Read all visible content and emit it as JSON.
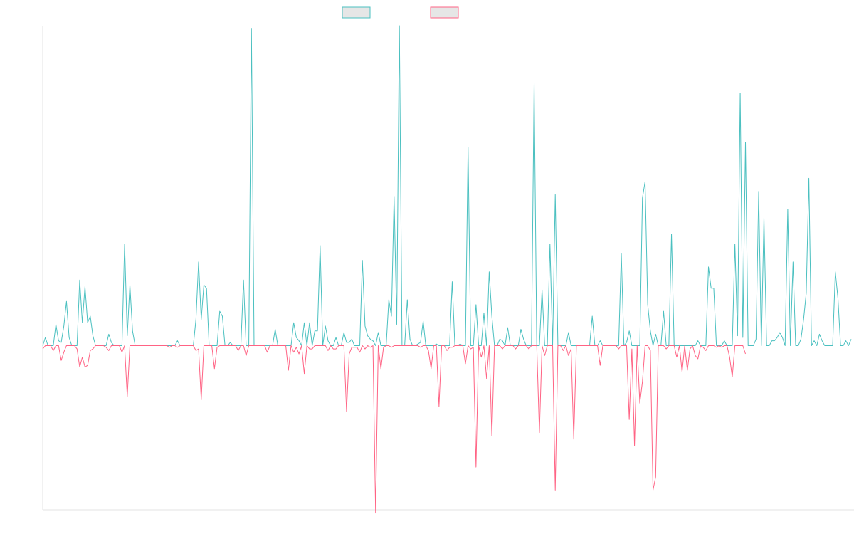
{
  "chart_data": {
    "type": "line",
    "title": "",
    "xlabel": "",
    "ylabel": "",
    "grid": false,
    "legend_placement": "top-center",
    "ylim": [
      -100,
      195
    ],
    "series": [
      {
        "name": "",
        "color": "#4bc0c0",
        "fill": "#e6e6e6",
        "values": [
          0,
          5,
          0,
          0,
          0,
          13,
          3,
          2,
          12,
          27,
          5,
          0,
          0,
          0,
          40,
          14,
          36,
          14,
          18,
          6,
          0,
          0,
          0,
          0,
          0,
          7,
          2,
          0,
          0,
          0,
          0,
          62,
          6,
          37,
          9,
          0,
          0,
          0,
          0,
          0,
          0,
          0,
          0,
          0,
          0,
          0,
          0,
          0,
          0,
          0,
          0,
          3,
          0,
          0,
          0,
          0,
          0,
          0,
          16,
          51,
          16,
          37,
          35,
          0,
          0,
          0,
          0,
          21,
          18,
          0,
          0,
          2,
          0,
          0,
          0,
          0,
          40,
          0,
          0,
          193,
          0,
          0,
          0,
          0,
          0,
          0,
          0,
          0,
          10,
          0,
          0,
          0,
          0,
          0,
          0,
          14,
          5,
          3,
          0,
          14,
          0,
          14,
          0,
          9,
          9,
          61,
          0,
          12,
          3,
          0,
          0,
          5,
          0,
          0,
          8,
          2,
          2,
          4,
          0,
          0,
          0,
          52,
          12,
          6,
          4,
          3,
          0,
          8,
          0,
          0,
          0,
          28,
          18,
          91,
          13,
          195,
          0,
          0,
          28,
          4,
          0,
          0,
          1,
          2,
          15,
          0,
          0,
          0,
          0,
          1,
          0,
          0,
          0,
          0,
          0,
          39,
          0,
          0,
          1,
          0,
          0,
          121,
          0,
          0,
          25,
          0,
          0,
          20,
          0,
          45,
          18,
          0,
          0,
          4,
          3,
          0,
          11,
          0,
          0,
          0,
          0,
          10,
          4,
          0,
          0,
          0,
          160,
          0,
          0,
          34,
          0,
          0,
          62,
          0,
          92,
          0,
          0,
          0,
          0,
          8,
          0,
          0,
          0,
          0,
          0,
          0,
          0,
          0,
          18,
          0,
          0,
          3,
          0,
          0,
          0,
          0,
          0,
          0,
          0,
          56,
          0,
          2,
          9,
          0,
          0,
          0,
          0,
          90,
          100,
          25,
          9,
          0,
          7,
          0,
          0,
          21,
          0,
          0,
          68,
          0,
          0,
          0,
          0,
          0,
          0,
          0,
          0,
          0,
          3,
          0,
          0,
          0,
          48,
          35,
          35,
          0,
          0,
          0,
          3,
          0,
          0,
          0,
          62,
          6,
          154,
          5,
          124,
          0,
          0,
          0,
          4,
          94,
          0,
          78,
          0,
          0,
          3,
          3,
          5,
          8,
          5,
          0,
          83,
          0,
          51,
          0,
          0,
          4,
          16,
          32,
          102,
          0,
          3,
          0,
          7,
          3,
          0,
          0,
          0,
          0,
          45,
          29,
          0,
          0,
          3,
          0,
          4
        ]
      },
      {
        "name": "",
        "color": "#ff6384",
        "fill": "#e6e6e6",
        "values": [
          -2,
          0,
          0,
          0,
          -3,
          0,
          0,
          -9,
          -4,
          0,
          0,
          0,
          0,
          -2,
          -13,
          -7,
          -13,
          -12,
          -3,
          -2,
          0,
          0,
          0,
          0,
          -1,
          -3,
          0,
          0,
          0,
          0,
          -4,
          0,
          -31,
          0,
          0,
          0,
          0,
          0,
          0,
          0,
          0,
          0,
          0,
          0,
          0,
          0,
          0,
          0,
          -1,
          0,
          0,
          -1,
          0,
          0,
          0,
          0,
          0,
          0,
          -3,
          -2,
          -33,
          0,
          0,
          0,
          0,
          -14,
          -1,
          0,
          0,
          0,
          0,
          0,
          0,
          0,
          -3,
          0,
          0,
          -6,
          0,
          0,
          0,
          0,
          0,
          0,
          0,
          -4,
          0,
          0,
          0,
          0,
          0,
          0,
          0,
          -15,
          0,
          -4,
          -1,
          -5,
          0,
          -17,
          0,
          -2,
          -2,
          0,
          0,
          0,
          0,
          0,
          -3,
          0,
          -2,
          -2,
          0,
          0,
          0,
          -40,
          -5,
          -1,
          -1,
          -1,
          -4,
          0,
          -2,
          0,
          -1,
          0,
          -102,
          0,
          -14,
          -1,
          0,
          0,
          -1,
          0,
          0,
          0,
          0,
          0,
          0,
          0,
          0,
          0,
          0,
          -1,
          0,
          0,
          -3,
          -14,
          0,
          0,
          -37,
          0,
          0,
          -3,
          -1,
          -1,
          0,
          0,
          0,
          0,
          -11,
          0,
          -2,
          -1,
          -74,
          0,
          -7,
          0,
          -20,
          0,
          -55,
          0,
          0,
          0,
          -2,
          0,
          0,
          0,
          0,
          -2,
          0,
          0,
          0,
          0,
          -2,
          0,
          0,
          0,
          -53,
          0,
          -6,
          0,
          0,
          0,
          -88,
          0,
          0,
          -3,
          0,
          -6,
          -2,
          -57,
          0,
          0,
          0,
          0,
          0,
          0,
          0,
          0,
          0,
          -12,
          0,
          0,
          0,
          0,
          0,
          0,
          -2,
          0,
          0,
          0,
          -45,
          -2,
          -61,
          0,
          -35,
          -22,
          0,
          0,
          -3,
          -88,
          -80,
          0,
          0,
          0,
          -2,
          0,
          0,
          0,
          -7,
          0,
          -16,
          0,
          -15,
          -2,
          0,
          -6,
          -8,
          0,
          -1,
          -3,
          0,
          0,
          0,
          -1,
          0,
          -1,
          0,
          0,
          -7,
          -19,
          0,
          0,
          0,
          0,
          -5
        ]
      }
    ]
  }
}
